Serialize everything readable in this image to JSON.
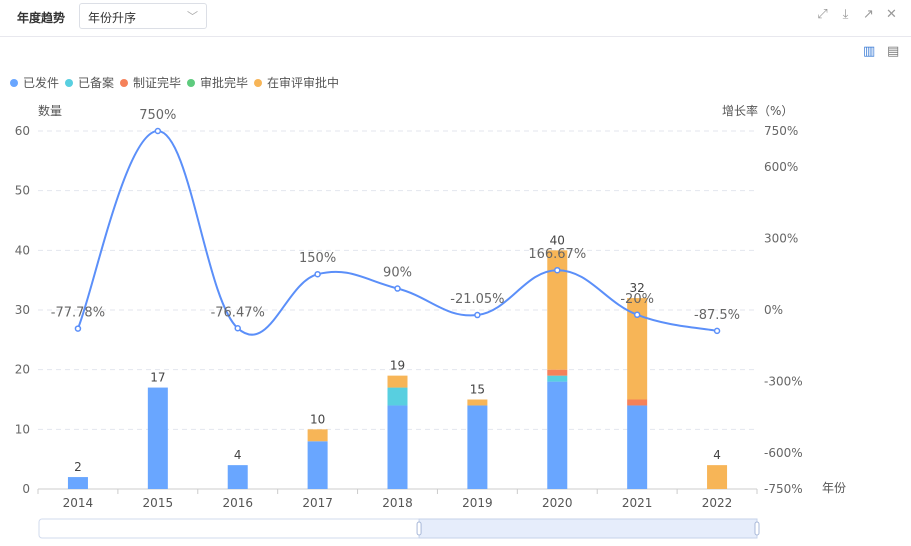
{
  "header": {
    "title": "年度趋势",
    "sort_select": "年份升序"
  },
  "toolbar": {
    "icons": [
      "expand-icon",
      "download-icon",
      "open-external-icon",
      "close-icon"
    ]
  },
  "chart_icons": [
    "bar-chart-icon",
    "document-icon"
  ],
  "colors": {
    "已发件": "#69a6ff",
    "已备案": "#58cfe0",
    "制证完毕": "#f5815a",
    "审批完毕": "#5ecb7e",
    "在审评审批中": "#f7b557",
    "line": "#5b8ff9"
  },
  "chart_data": {
    "type": "bar",
    "categories": [
      "2014",
      "2015",
      "2016",
      "2017",
      "2018",
      "2019",
      "2020",
      "2021",
      "2022"
    ],
    "series": [
      {
        "name": "已发件",
        "values": [
          2,
          17,
          4,
          8,
          14,
          14,
          18,
          14,
          0
        ]
      },
      {
        "name": "已备案",
        "values": [
          0,
          0,
          0,
          0,
          3,
          0,
          1,
          0,
          0
        ]
      },
      {
        "name": "制证完毕",
        "values": [
          0,
          0,
          0,
          0,
          0,
          0,
          1,
          1,
          0
        ]
      },
      {
        "name": "审批完毕",
        "values": [
          0,
          0,
          0,
          0,
          0,
          0,
          0,
          0,
          0
        ]
      },
      {
        "name": "在审评审批中",
        "values": [
          0,
          0,
          0,
          2,
          2,
          1,
          20,
          17,
          4
        ]
      }
    ],
    "totals": [
      "2",
      "17",
      "4",
      "10",
      "19",
      "15",
      "40",
      "32",
      "4"
    ],
    "growth": {
      "name": "增长率",
      "values": [
        -77.78,
        750,
        -76.47,
        150,
        90,
        -21.05,
        166.67,
        -20,
        -87.5
      ],
      "labels": [
        "-77.78%",
        "750%",
        "-76.47%",
        "150%",
        "90%",
        "-21.05%",
        "166.67%",
        "-20%",
        "-87.5%"
      ]
    },
    "ylabel": "数量",
    "y2label": "增长率（%）",
    "xlabel": "年份",
    "ylim": [
      0,
      60
    ],
    "yticks": [
      "0",
      "10",
      "20",
      "30",
      "40",
      "50",
      "60"
    ],
    "y2lim": [
      -750,
      750
    ],
    "y2ticks_values": [
      -750,
      -600,
      -300,
      0,
      300,
      600,
      750
    ],
    "y2ticks": [
      "-750%",
      "-600%",
      "-300%",
      "0%",
      "300%",
      "600%",
      "750%"
    ],
    "legend_position": "top-left",
    "datazoom_range_percent": [
      53,
      100
    ]
  }
}
